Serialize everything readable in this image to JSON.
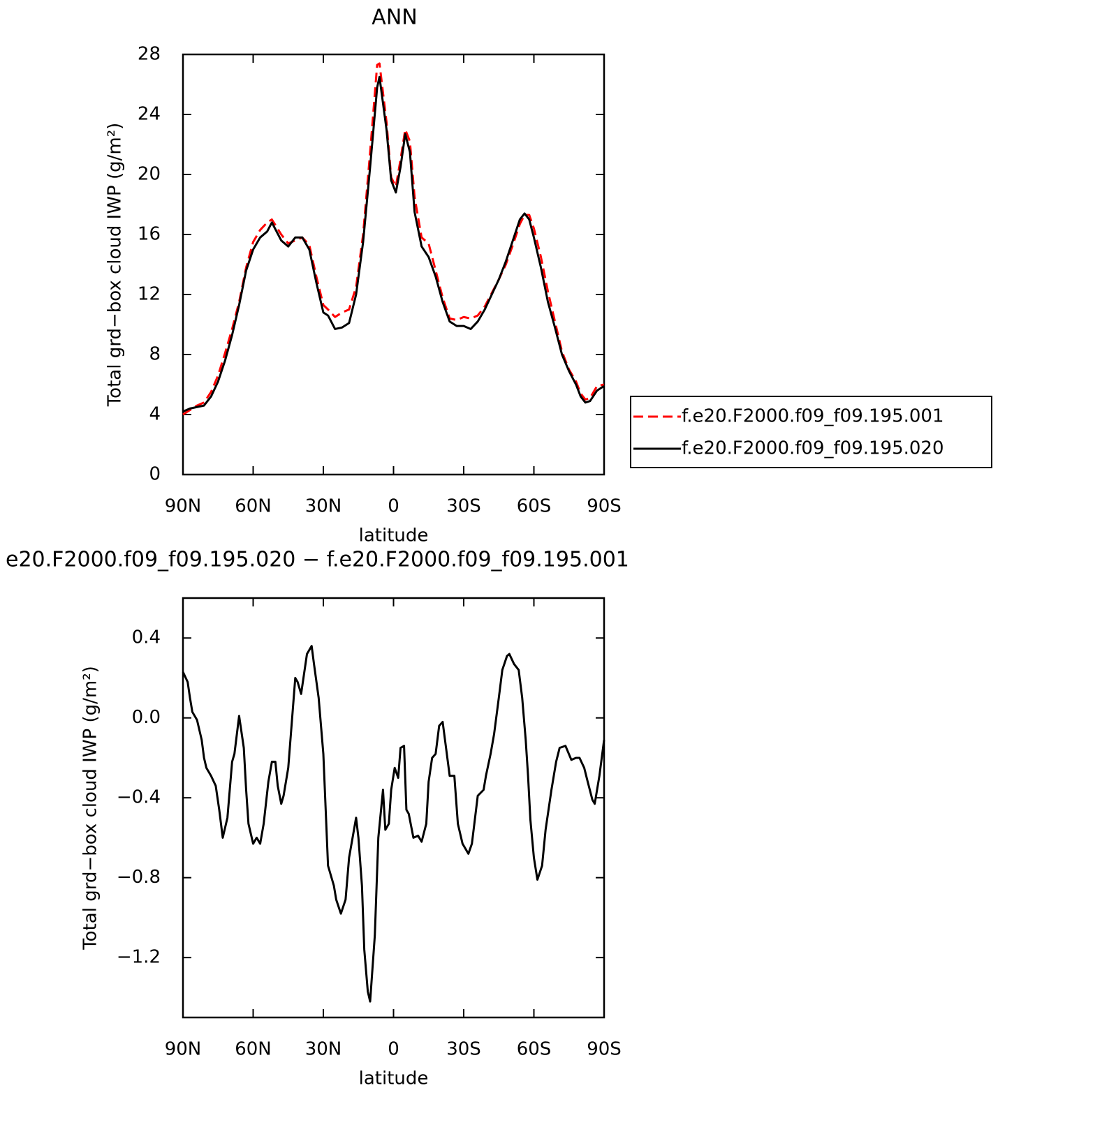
{
  "chart_data": [
    {
      "type": "line",
      "title": "ANN",
      "xlabel": "latitude",
      "ylabel": "Total grd−box cloud IWP (g/m²)",
      "xlim": [
        90,
        -90
      ],
      "xticks": [
        {
          "value": 90,
          "label": "90N"
        },
        {
          "value": 60,
          "label": "60N"
        },
        {
          "value": 30,
          "label": "30N"
        },
        0,
        {
          "value": -30,
          "label": "30S"
        },
        {
          "value": -60,
          "label": "60S"
        },
        {
          "value": -90,
          "label": "90S"
        }
      ],
      "ylim": [
        0,
        28
      ],
      "yticks": [
        0,
        4,
        8,
        12,
        16,
        20,
        24,
        28
      ],
      "x": [
        90,
        87,
        84,
        81,
        78,
        75,
        72,
        69,
        66,
        63,
        60,
        57,
        54,
        52,
        48,
        45,
        42,
        39,
        36,
        33,
        30,
        28,
        25,
        22,
        19,
        16,
        13,
        10,
        7,
        6,
        3,
        1,
        -1,
        -3,
        -5,
        -7,
        -9,
        -12,
        -15,
        -18,
        -21,
        -24,
        -27,
        -30,
        -33,
        -36,
        -39,
        -42,
        -45,
        -48,
        -51,
        -54,
        -56,
        -58,
        -60,
        -63,
        -66,
        -69,
        -72,
        -75,
        -78,
        -80,
        -82,
        -84,
        -87,
        -90
      ],
      "series": [
        {
          "name": "f.e20.F2000.f09_f09.195.001",
          "color": "#ff0000",
          "dashed": true,
          "values": [
            4.0,
            4.3,
            4.6,
            4.8,
            5.5,
            6.6,
            8.1,
            9.7,
            11.5,
            13.8,
            15.5,
            16.3,
            16.8,
            17.0,
            16.0,
            15.4,
            15.6,
            15.8,
            15.3,
            13.2,
            11.3,
            11.0,
            10.5,
            10.8,
            11.0,
            12.5,
            16.0,
            21.5,
            27.3,
            27.4,
            23.5,
            19.8,
            19.2,
            21.0,
            23.0,
            22.2,
            18.5,
            15.8,
            15.4,
            13.6,
            11.8,
            10.4,
            10.3,
            10.5,
            10.4,
            10.6,
            11.2,
            12.1,
            13.0,
            14.0,
            15.3,
            16.7,
            17.3,
            17.3,
            16.4,
            14.5,
            12.2,
            10.2,
            8.2,
            7.0,
            6.2,
            5.4,
            5.0,
            5.1,
            5.9,
            6.0
          ]
        },
        {
          "name": "f.e20.F2000.f09_f09.195.020",
          "color": "#000000",
          "dashed": false,
          "values": [
            4.2,
            4.4,
            4.5,
            4.6,
            5.2,
            6.2,
            7.6,
            9.3,
            11.3,
            13.6,
            15.0,
            15.8,
            16.2,
            16.8,
            15.6,
            15.2,
            15.8,
            15.8,
            15.0,
            12.8,
            10.8,
            10.6,
            9.7,
            9.8,
            10.1,
            12.0,
            15.5,
            20.5,
            25.8,
            26.5,
            23.0,
            19.6,
            18.8,
            20.5,
            22.7,
            21.5,
            17.5,
            15.2,
            14.5,
            13.2,
            11.5,
            10.2,
            9.9,
            9.9,
            9.7,
            10.2,
            11.0,
            12.0,
            13.0,
            14.2,
            15.6,
            17.0,
            17.4,
            17.0,
            15.8,
            13.8,
            11.5,
            9.8,
            8.0,
            6.9,
            6.0,
            5.2,
            4.8,
            4.9,
            5.6,
            5.9
          ]
        }
      ]
    },
    {
      "type": "line",
      "title": "e20.F2000.f09_f09.195.020 − f.e20.F2000.f09_f09.195.001",
      "xlabel": "latitude",
      "ylabel": "Total grd−box cloud IWP (g/m²)",
      "xlim": [
        90,
        -90
      ],
      "xticks": [
        {
          "value": 90,
          "label": "90N"
        },
        {
          "value": 60,
          "label": "60N"
        },
        {
          "value": 30,
          "label": "30N"
        },
        0,
        {
          "value": -30,
          "label": "30S"
        },
        {
          "value": -60,
          "label": "60S"
        },
        {
          "value": -90,
          "label": "90S"
        }
      ],
      "ylim": [
        -1.5,
        0.6
      ],
      "yticks": [
        {
          "value": -1.2,
          "label": "−1.2"
        },
        {
          "value": -0.8,
          "label": "−0.8"
        },
        {
          "value": -0.4,
          "label": "−0.4"
        },
        {
          "value": 0,
          "label": "0.0"
        },
        0.4
      ],
      "x": [
        90,
        88,
        87,
        86,
        84,
        82,
        81,
        80,
        78,
        76,
        74.5,
        73,
        71,
        69,
        68,
        66,
        64,
        63,
        62,
        60,
        58.5,
        57,
        55.5,
        53.5,
        52,
        50.5,
        49.5,
        48,
        47,
        45,
        42,
        41,
        39.5,
        37,
        35,
        34,
        32,
        30,
        29,
        28,
        26.5,
        25.5,
        24.5,
        22.5,
        20.5,
        19,
        16,
        15,
        13.5,
        12.5,
        11,
        10,
        8,
        6.5,
        4.5,
        3.5,
        2,
        1,
        -0.5,
        -2,
        -3,
        -4.5,
        -5.5,
        -6.5,
        -8.5,
        -10.5,
        -12,
        -14,
        -15,
        -16.5,
        -18,
        -19.5,
        -21,
        -23,
        -24,
        -26,
        -27.5,
        -29.5,
        -32,
        -33.5,
        -36,
        -38.5,
        -39.5,
        -41.5,
        -43,
        -45,
        -46.5,
        -48.5,
        -49.5,
        -51.5,
        -53.5,
        -55,
        -56.5,
        -57.5,
        -58.5,
        -60,
        -61.5,
        -63.5,
        -65,
        -67.5,
        -69.5,
        -71,
        -73.5,
        -76,
        -78,
        -79.5,
        -81.5,
        -83,
        -85,
        -86,
        -88,
        -90
      ],
      "series": [
        {
          "color": "#000000",
          "dashed": false,
          "values": [
            0.23,
            0.18,
            0.1,
            0.03,
            -0.01,
            -0.11,
            -0.2,
            -0.25,
            -0.29,
            -0.34,
            -0.46,
            -0.6,
            -0.5,
            -0.22,
            -0.18,
            0.01,
            -0.15,
            -0.36,
            -0.53,
            -0.63,
            -0.6,
            -0.63,
            -0.53,
            -0.32,
            -0.22,
            -0.22,
            -0.34,
            -0.43,
            -0.39,
            -0.25,
            0.2,
            0.18,
            0.12,
            0.32,
            0.36,
            0.27,
            0.1,
            -0.18,
            -0.46,
            -0.74,
            -0.8,
            -0.84,
            -0.91,
            -0.98,
            -0.91,
            -0.7,
            -0.5,
            -0.6,
            -0.84,
            -1.16,
            -1.37,
            -1.42,
            -1.09,
            -0.6,
            -0.36,
            -0.56,
            -0.53,
            -0.36,
            -0.25,
            -0.3,
            -0.15,
            -0.14,
            -0.46,
            -0.48,
            -0.6,
            -0.59,
            -0.62,
            -0.53,
            -0.32,
            -0.2,
            -0.18,
            -0.04,
            -0.02,
            -0.2,
            -0.29,
            -0.29,
            -0.53,
            -0.63,
            -0.68,
            -0.63,
            -0.39,
            -0.36,
            -0.29,
            -0.18,
            -0.08,
            0.1,
            0.24,
            0.31,
            0.32,
            0.27,
            0.24,
            0.1,
            -0.11,
            -0.29,
            -0.51,
            -0.7,
            -0.81,
            -0.74,
            -0.56,
            -0.36,
            -0.22,
            -0.15,
            -0.14,
            -0.21,
            -0.2,
            -0.2,
            -0.25,
            -0.32,
            -0.41,
            -0.43,
            -0.29,
            -0.11
          ]
        }
      ]
    }
  ]
}
